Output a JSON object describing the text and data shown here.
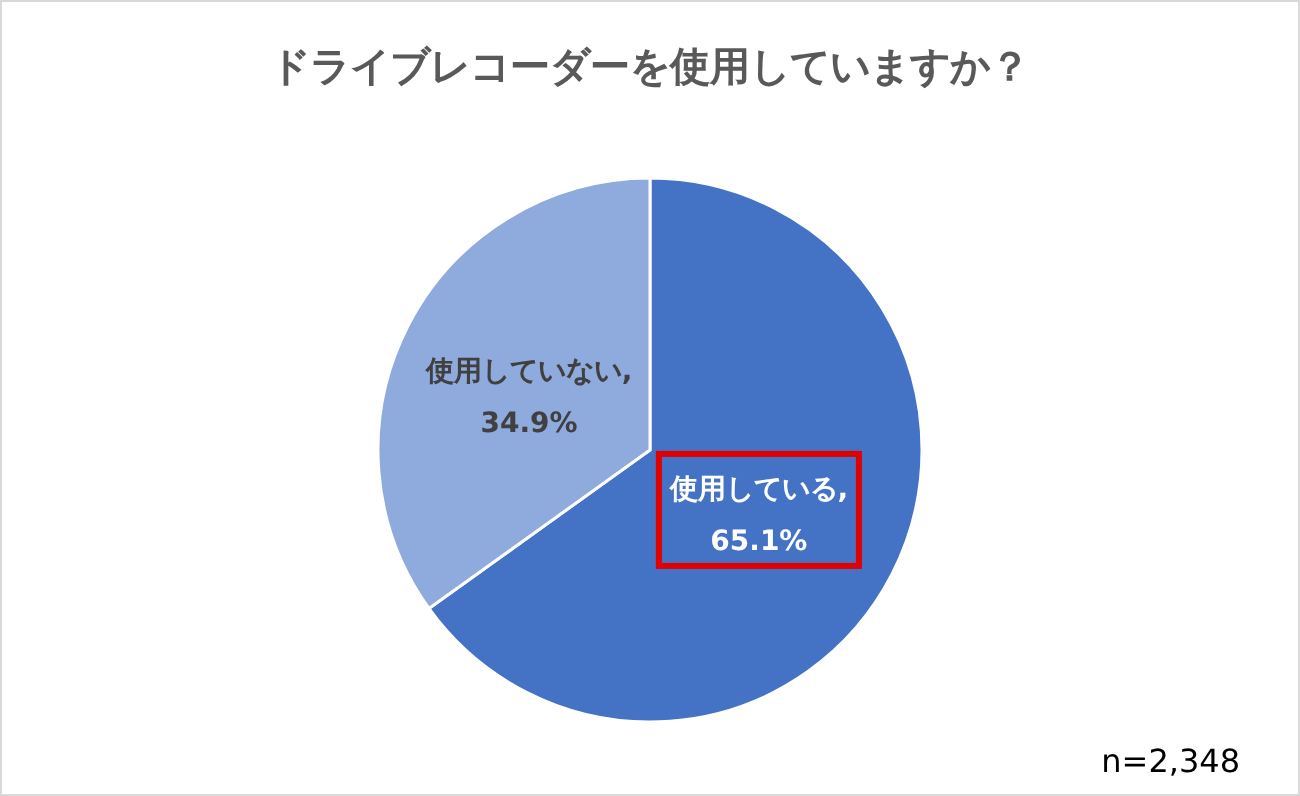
{
  "chart_data": {
    "type": "pie",
    "title": "ドライブレコーダーを使用していますか？",
    "categories": [
      "使用している",
      "使用していない"
    ],
    "values": [
      65.1,
      34.9
    ],
    "value_labels": [
      ",\n65.1%",
      ",\n34.9%"
    ],
    "colors": [
      "#4472c4",
      "#8faadc"
    ],
    "annotations": [
      "n=2,348"
    ]
  }
}
